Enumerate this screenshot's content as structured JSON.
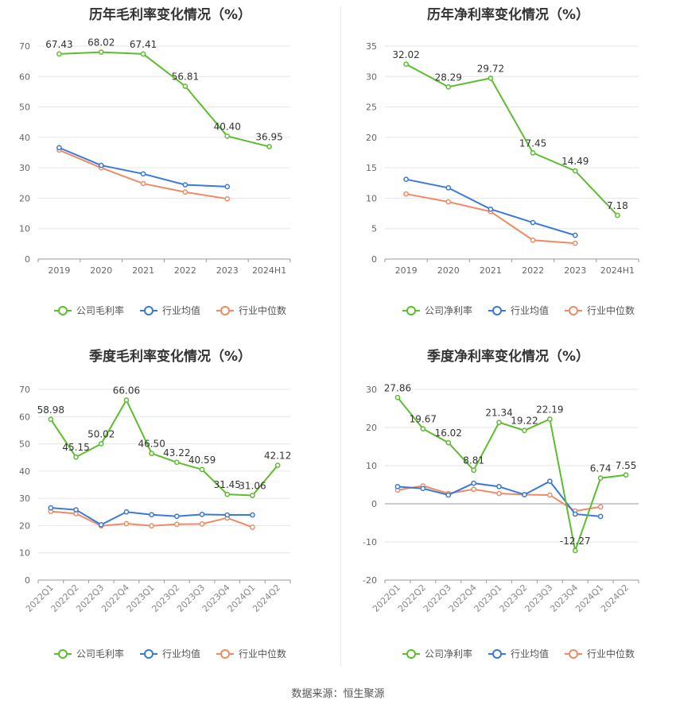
{
  "footer": "数据来源：恒生聚源",
  "colors": {
    "company": "#5cbd2e",
    "avg": "#3a78d9",
    "median": "#f08a65"
  },
  "chart_data": [
    {
      "id": "annual-gross",
      "type": "line",
      "title": "历年毛利率变化情况（%）",
      "categories": [
        "2019",
        "2020",
        "2021",
        "2022",
        "2023",
        "2024H1"
      ],
      "ylim": [
        0,
        70
      ],
      "yticks": [
        0,
        10,
        20,
        30,
        40,
        50,
        60,
        70
      ],
      "series": [
        {
          "name": "公司毛利率",
          "values": [
            67.43,
            68.02,
            67.41,
            56.81,
            40.4,
            36.95
          ],
          "labels": [
            "67.43",
            "68.02",
            "67.41",
            "56.81",
            "40.40",
            "36.95"
          ]
        },
        {
          "name": "行业均值",
          "values": [
            36.6,
            30.8,
            28.0,
            24.4,
            23.8,
            null
          ]
        },
        {
          "name": "行业中位数",
          "values": [
            35.8,
            30.0,
            24.8,
            22.0,
            19.8,
            null
          ]
        }
      ],
      "legend": "bottom"
    },
    {
      "id": "annual-net",
      "type": "line",
      "title": "历年净利率变化情况（%）",
      "categories": [
        "2019",
        "2020",
        "2021",
        "2022",
        "2023",
        "2024H1"
      ],
      "ylim": [
        0,
        35
      ],
      "yticks": [
        0,
        5,
        10,
        15,
        20,
        25,
        30,
        35
      ],
      "series": [
        {
          "name": "公司净利率",
          "values": [
            32.02,
            28.29,
            29.72,
            17.45,
            14.49,
            7.18
          ],
          "labels": [
            "32.02",
            "28.29",
            "29.72",
            "17.45",
            "14.49",
            "7.18"
          ]
        },
        {
          "name": "行业均值",
          "values": [
            13.1,
            11.7,
            8.2,
            6.0,
            3.9,
            null
          ]
        },
        {
          "name": "行业中位数",
          "values": [
            10.7,
            9.4,
            7.8,
            3.1,
            2.6,
            null
          ]
        }
      ],
      "legend": "bottom"
    },
    {
      "id": "quarterly-gross",
      "type": "line",
      "title": "季度毛利率变化情况（%）",
      "categories": [
        "2022Q1",
        "2022Q2",
        "2022Q3",
        "2022Q4",
        "2023Q1",
        "2023Q2",
        "2023Q3",
        "2023Q4",
        "2024Q1",
        "2024Q2"
      ],
      "ylim": [
        0,
        70
      ],
      "yticks": [
        0,
        10,
        20,
        30,
        40,
        50,
        60,
        70
      ],
      "series": [
        {
          "name": "公司毛利率",
          "values": [
            58.98,
            45.15,
            50.02,
            66.06,
            46.5,
            43.22,
            40.59,
            31.45,
            31.06,
            42.12
          ],
          "labels": [
            "58.98",
            "45.15",
            "50.02",
            "66.06",
            "46.50",
            "43.22",
            "40.59",
            "31.45",
            "31.06",
            "42.12"
          ]
        },
        {
          "name": "行业均值",
          "values": [
            26.5,
            25.8,
            20.3,
            25.0,
            24.0,
            23.4,
            24.1,
            23.9,
            23.9,
            null
          ]
        },
        {
          "name": "行业中位数",
          "values": [
            25.2,
            24.4,
            19.9,
            20.7,
            19.9,
            20.5,
            20.6,
            22.8,
            19.4,
            null
          ]
        }
      ],
      "legend": "bottom"
    },
    {
      "id": "quarterly-net",
      "type": "line",
      "title": "季度净利率变化情况（%）",
      "categories": [
        "2022Q1",
        "2022Q2",
        "2022Q3",
        "2022Q4",
        "2023Q1",
        "2023Q2",
        "2023Q3",
        "2023Q4",
        "2024Q1",
        "2024Q2"
      ],
      "ylim": [
        -20,
        30
      ],
      "yticks": [
        -20,
        -10,
        0,
        10,
        20,
        30
      ],
      "series": [
        {
          "name": "公司净利率",
          "values": [
            27.86,
            19.67,
            16.02,
            8.81,
            21.34,
            19.22,
            22.19,
            -12.27,
            6.74,
            7.55
          ],
          "labels": [
            "27.86",
            "19.67",
            "16.02",
            "8.81",
            "21.34",
            "19.22",
            "22.19",
            "-12.27",
            "6.74",
            "7.55"
          ]
        },
        {
          "name": "行业均值",
          "values": [
            4.5,
            4.0,
            2.3,
            5.4,
            4.5,
            2.4,
            5.9,
            -2.7,
            -3.3,
            null
          ]
        },
        {
          "name": "行业中位数",
          "values": [
            3.6,
            4.7,
            2.7,
            3.8,
            2.7,
            2.4,
            2.3,
            -1.9,
            -0.8,
            null
          ]
        }
      ],
      "legend": "bottom"
    }
  ]
}
